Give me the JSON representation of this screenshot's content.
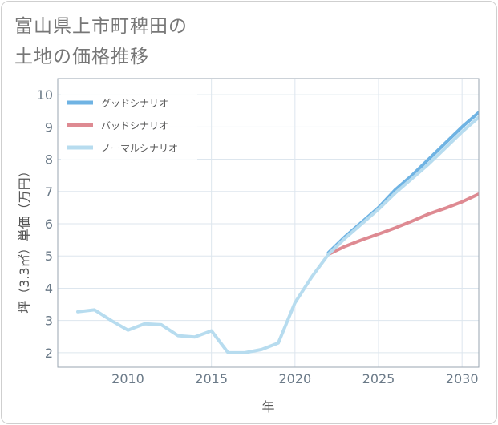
{
  "title_lines": [
    "富山県上市町稗田の",
    "土地の価格推移"
  ],
  "chart_data": {
    "type": "line",
    "title": "富山県上市町稗田の土地の価格推移",
    "xlabel": "年",
    "ylabel": "坪（3.3㎡）単価（万円）",
    "xlim": [
      2005.8,
      2031
    ],
    "ylim": [
      1.55,
      10.5
    ],
    "xticks": [
      2010,
      2015,
      2020,
      2025,
      2030
    ],
    "yticks": [
      2,
      3,
      4,
      5,
      6,
      7,
      8,
      9,
      10
    ],
    "grid": true,
    "legend_position": "top-left",
    "series": [
      {
        "name": "グッドシナリオ",
        "color": "#6fb3e3",
        "x": [
          2022,
          2023,
          2024,
          2025,
          2026,
          2027,
          2028,
          2029,
          2030,
          2031
        ],
        "y": [
          5.1,
          5.6,
          6.05,
          6.5,
          7.05,
          7.5,
          8.0,
          8.5,
          9.0,
          9.45
        ]
      },
      {
        "name": "バッドシナリオ",
        "color": "#de8a92",
        "x": [
          2022,
          2023,
          2024,
          2025,
          2026,
          2027,
          2028,
          2029,
          2030,
          2031
        ],
        "y": [
          5.05,
          5.3,
          5.5,
          5.68,
          5.87,
          6.08,
          6.3,
          6.48,
          6.68,
          6.92
        ]
      },
      {
        "name": "ノーマルシナリオ",
        "color": "#b7dcef",
        "x": [
          2007,
          2008,
          2009,
          2010,
          2011,
          2012,
          2013,
          2014,
          2015,
          2016,
          2017,
          2018,
          2019,
          2020,
          2021,
          2022,
          2023,
          2024,
          2025,
          2026,
          2027,
          2028,
          2029,
          2030,
          2031
        ],
        "y": [
          3.27,
          3.33,
          3.0,
          2.7,
          2.9,
          2.87,
          2.53,
          2.49,
          2.68,
          2.0,
          2.0,
          2.1,
          2.3,
          3.55,
          4.35,
          5.05,
          5.55,
          6.0,
          6.45,
          6.95,
          7.4,
          7.85,
          8.35,
          8.85,
          9.3
        ]
      }
    ]
  }
}
